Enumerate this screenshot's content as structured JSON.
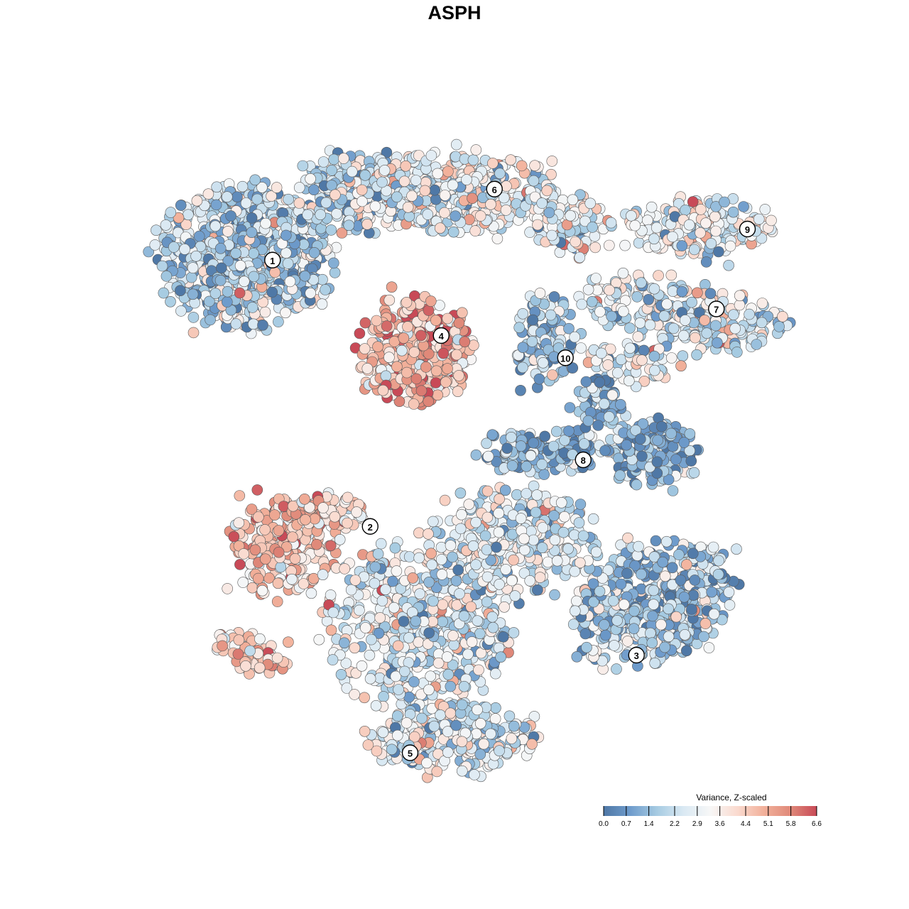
{
  "chart_data": {
    "type": "scatter",
    "title": "ASPH",
    "xlabel": "",
    "ylabel": "",
    "grid": false,
    "color_scale": {
      "title": "Variance, Z-scaled",
      "min": 0.0,
      "max": 6.6,
      "ticks": [
        "0.0",
        "0.7",
        "1.4",
        "2.2",
        "2.9",
        "3.6",
        "4.4",
        "5.1",
        "5.8",
        "6.6"
      ],
      "colors": [
        "#4f78a6",
        "#6f9ccc",
        "#a6cbe2",
        "#dae9f3",
        "#f7f7f7",
        "#fadbd0",
        "#f2b19b",
        "#e08a7a",
        "#c84a57"
      ],
      "legend_position": "bottom-right"
    },
    "clusters": [
      {
        "label": "1",
        "x": -20.5,
        "y": 19.5,
        "mean_value": 2.0
      },
      {
        "label": "2",
        "x": -9.5,
        "y": -10.5,
        "mean_value": 4.5
      },
      {
        "label": "3",
        "x": 20.5,
        "y": -25.0,
        "mean_value": 1.8
      },
      {
        "label": "4",
        "x": -1.5,
        "y": 11.0,
        "mean_value": 4.6
      },
      {
        "label": "5",
        "x": -5.0,
        "y": -36.0,
        "mean_value": 2.7
      },
      {
        "label": "6",
        "x": 4.5,
        "y": 27.5,
        "mean_value": 2.9
      },
      {
        "label": "7",
        "x": 29.5,
        "y": 14.0,
        "mean_value": 2.7
      },
      {
        "label": "8",
        "x": 14.5,
        "y": -3.0,
        "mean_value": 1.2
      },
      {
        "label": "9",
        "x": 33.0,
        "y": 23.0,
        "mean_value": 3.0
      },
      {
        "label": "10",
        "x": 12.5,
        "y": 8.5,
        "mean_value": 1.5
      }
    ]
  }
}
